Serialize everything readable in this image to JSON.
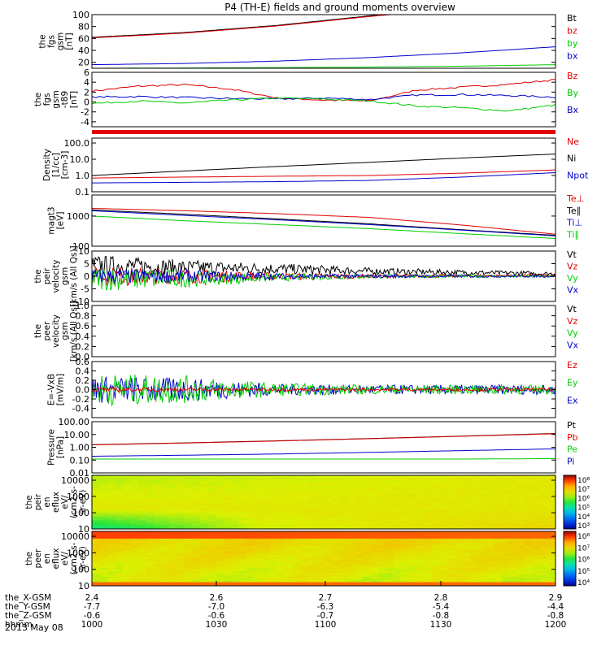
{
  "title": "P4 (TH-E) fields and ground moments overview",
  "date_label": "2013 May 08",
  "colors": {
    "black": "#000000",
    "red": "#e00000",
    "green": "#00cc00",
    "blue": "#0000cc"
  },
  "chart_data": [
    {
      "id": "fgs",
      "type": "line",
      "ylabel": [
        "the",
        "fgs",
        "gsm",
        "[nT]"
      ],
      "ylim": [
        10,
        100
      ],
      "scale": "linear",
      "yticks": [
        "100",
        "80",
        "60",
        "40",
        "20"
      ],
      "ytick_values": [
        100,
        80,
        60,
        40,
        20
      ],
      "legend": [
        {
          "text": "Bt",
          "color": "#000000"
        },
        {
          "text": "bz",
          "color": "#e00000"
        },
        {
          "text": "by",
          "color": "#00cc00"
        },
        {
          "text": "bx",
          "color": "#0000cc"
        }
      ],
      "series": [
        {
          "name": "Bt",
          "color": "#000000",
          "x": [
            2.4,
            2.5,
            2.6,
            2.7,
            2.72
          ],
          "y": [
            62,
            70,
            82,
            98,
            102
          ]
        },
        {
          "name": "bz",
          "color": "#e00000",
          "x": [
            2.4,
            2.5,
            2.6,
            2.7,
            2.73
          ],
          "y": [
            61,
            69,
            81,
            97,
            101
          ]
        },
        {
          "name": "by",
          "color": "#0000cc",
          "x": [
            2.4,
            2.5,
            2.6,
            2.7,
            2.8,
            2.9
          ],
          "y": [
            16,
            18,
            22,
            28,
            36,
            46
          ]
        },
        {
          "name": "bx",
          "color": "#00cc00",
          "x": [
            2.4,
            2.5,
            2.6,
            2.7,
            2.8,
            2.9
          ],
          "y": [
            10,
            10.5,
            11,
            12,
            13.5,
            16
          ]
        }
      ]
    },
    {
      "id": "fgs_dsl",
      "type": "line",
      "ylabel": [
        "the",
        "fgs",
        "gsm",
        "-t89",
        "[nT]"
      ],
      "ylim": [
        -5,
        6
      ],
      "scale": "linear",
      "yticks": [
        "6",
        "4",
        "2",
        "0",
        "-2",
        "-4"
      ],
      "ytick_values": [
        6,
        4,
        2,
        0,
        -2,
        -4
      ],
      "legend": [
        {
          "text": "Bz",
          "color": "#e00000"
        },
        {
          "text": "By",
          "color": "#00cc00"
        },
        {
          "text": "Bx",
          "color": "#0000cc"
        }
      ],
      "series": [
        {
          "name": "Bz",
          "color": "#e00000",
          "x": [
            2.4,
            2.45,
            2.5,
            2.55,
            2.6,
            2.65,
            2.7,
            2.75,
            2.8,
            2.85,
            2.9
          ],
          "y": [
            2.2,
            3.2,
            3.5,
            2.6,
            0.8,
            0.4,
            0.2,
            2.4,
            3.0,
            3.6,
            4.5
          ]
        },
        {
          "name": "By",
          "color": "#0000cc",
          "x": [
            2.4,
            2.45,
            2.5,
            2.55,
            2.6,
            2.65,
            2.7,
            2.75,
            2.8,
            2.85,
            2.9
          ],
          "y": [
            1.0,
            1.1,
            0.9,
            0.7,
            0.6,
            0.8,
            0.5,
            1.4,
            1.5,
            1.3,
            1.0
          ]
        },
        {
          "name": "Bx",
          "color": "#00cc00",
          "x": [
            2.4,
            2.45,
            2.5,
            2.55,
            2.6,
            2.65,
            2.7,
            2.75,
            2.8,
            2.85,
            2.9
          ],
          "y": [
            -0.3,
            0.2,
            -0.2,
            0.4,
            0.8,
            0.6,
            0.2,
            -0.8,
            -1.2,
            -1.8,
            -0.6
          ]
        }
      ]
    },
    {
      "id": "density",
      "type": "line",
      "ylabel": [
        "Density",
        "[1/cc]",
        "[cm-3]"
      ],
      "ylim": [
        0.1,
        200
      ],
      "scale": "log",
      "yticks": [
        "100.0",
        "10.0",
        "1.0",
        "0.1"
      ],
      "ytick_values": [
        100,
        10,
        1,
        0.1
      ],
      "legend": [
        {
          "text": "Ne",
          "color": "#e00000"
        },
        {
          "text": "Ni",
          "color": "#000000"
        },
        {
          "text": "Npot",
          "color": "#0000cc"
        }
      ],
      "series": [
        {
          "name": "Ni",
          "color": "#000000",
          "x": [
            2.4,
            2.5,
            2.6,
            2.7,
            2.8,
            2.9
          ],
          "y": [
            1.0,
            1.9,
            3.6,
            6.5,
            12,
            21
          ]
        },
        {
          "name": "Ne",
          "color": "#e00000",
          "x": [
            2.4,
            2.5,
            2.6,
            2.7,
            2.8,
            2.9
          ],
          "y": [
            0.7,
            0.8,
            0.9,
            1.0,
            1.4,
            2.2
          ]
        },
        {
          "name": "Npot",
          "color": "#0000cc",
          "x": [
            2.4,
            2.5,
            2.6,
            2.7,
            2.8,
            2.9
          ],
          "y": [
            0.35,
            0.38,
            0.42,
            0.5,
            0.8,
            1.5
          ]
        }
      ]
    },
    {
      "id": "temp",
      "type": "line",
      "ylabel": [
        "magt3",
        "[eV]"
      ],
      "ylim": [
        100,
        5000
      ],
      "scale": "log",
      "yticks": [
        "1000",
        "100"
      ],
      "ytick_values": [
        1000,
        100
      ],
      "legend": [
        {
          "text": "Te⊥",
          "color": "#e00000"
        },
        {
          "text": "Te∥",
          "color": "#000000"
        },
        {
          "text": "Ti⊥",
          "color": "#0000cc"
        },
        {
          "text": "Ti∥",
          "color": "#00cc00"
        }
      ],
      "series": [
        {
          "name": "Te⊥",
          "color": "#e00000",
          "x": [
            2.4,
            2.5,
            2.6,
            2.7,
            2.8,
            2.9
          ],
          "y": [
            1800,
            1500,
            1200,
            900,
            500,
            250
          ]
        },
        {
          "name": "Te∥",
          "color": "#000000",
          "x": [
            2.4,
            2.5,
            2.6,
            2.7,
            2.8,
            2.9
          ],
          "y": [
            1600,
            1150,
            800,
            550,
            350,
            230
          ]
        },
        {
          "name": "Ti⊥",
          "color": "#0000cc",
          "x": [
            2.4,
            2.5,
            2.6,
            2.7,
            2.8,
            2.9
          ],
          "y": [
            1500,
            1050,
            750,
            520,
            340,
            220
          ]
        },
        {
          "name": "Ti∥",
          "color": "#00cc00",
          "x": [
            2.4,
            2.5,
            2.6,
            2.7,
            2.8,
            2.9
          ],
          "y": [
            1000,
            700,
            520,
            380,
            260,
            180
          ]
        }
      ]
    },
    {
      "id": "peir_v",
      "type": "line",
      "ylabel": [
        "the",
        "peir",
        "velocity",
        "gsm",
        "[km/s (All Qs)]"
      ],
      "ylim": [
        -10,
        10
      ],
      "scale": "linear",
      "yticks": [
        "10",
        "5",
        "0",
        "-5",
        "-10"
      ],
      "ytick_values": [
        10,
        5,
        0,
        -5,
        -10
      ],
      "legend": [
        {
          "text": "Vt",
          "color": "#000000"
        },
        {
          "text": "Vz",
          "color": "#e00000"
        },
        {
          "text": "Vy",
          "color": "#00cc00"
        },
        {
          "text": "Vx",
          "color": "#0000cc"
        }
      ],
      "series": [
        {
          "name": "Vt",
          "color": "#000000",
          "x": [
            2.4,
            2.5,
            2.6,
            2.7,
            2.8,
            2.9
          ],
          "y": [
            4.5,
            3.5,
            3,
            2,
            1.5,
            1
          ],
          "noise": [
            4,
            3,
            2.2,
            1.4,
            1,
            0.8
          ]
        },
        {
          "name": "Vz",
          "color": "#e00000",
          "x": [
            2.4,
            2.5,
            2.6,
            2.7,
            2.8,
            2.9
          ],
          "y": [
            0,
            0,
            0,
            0,
            0.2,
            0.3
          ],
          "noise": [
            4,
            3,
            1.5,
            0.8,
            0.6,
            0.5
          ]
        },
        {
          "name": "Vy",
          "color": "#00cc00",
          "x": [
            2.4,
            2.5,
            2.6,
            2.7,
            2.8,
            2.9
          ],
          "y": [
            -1,
            -1,
            -0.5,
            0,
            0,
            0
          ],
          "noise": [
            5,
            3.5,
            1.5,
            0.8,
            0.6,
            0.5
          ]
        },
        {
          "name": "Vx",
          "color": "#0000cc",
          "x": [
            2.4,
            2.5,
            2.6,
            2.7,
            2.8,
            2.9
          ],
          "y": [
            0,
            0,
            0,
            0,
            0,
            0
          ],
          "noise": [
            3,
            2.5,
            1.2,
            0.7,
            0.5,
            0.4
          ]
        }
      ]
    },
    {
      "id": "peer_v",
      "type": "line",
      "ylabel": [
        "the",
        "peer",
        "velocity",
        "gsm",
        "[km/s (All Qs)]"
      ],
      "ylim": [
        0,
        1
      ],
      "scale": "linear",
      "yticks": [
        "1.0",
        "0.8",
        "0.6",
        "0.4",
        "0.2",
        "0.0"
      ],
      "ytick_values": [
        1,
        0.8,
        0.6,
        0.4,
        0.2,
        0
      ],
      "legend": [
        {
          "text": "Vt",
          "color": "#000000"
        },
        {
          "text": "Vz",
          "color": "#e00000"
        },
        {
          "text": "Vy",
          "color": "#00cc00"
        },
        {
          "text": "Vx",
          "color": "#0000cc"
        }
      ],
      "series": []
    },
    {
      "id": "efield",
      "type": "line",
      "ylabel": [
        "E=-VxB",
        "[mV/m]"
      ],
      "ylim": [
        -0.6,
        0.6
      ],
      "scale": "linear",
      "yticks": [
        "0.6",
        "0.4",
        "0.2",
        "0.0",
        "-0.2",
        "-0.4"
      ],
      "ytick_values": [
        0.6,
        0.4,
        0.2,
        0,
        -0.2,
        -0.4
      ],
      "legend": [
        {
          "text": "Ez",
          "color": "#e00000"
        },
        {
          "text": "Ey",
          "color": "#00cc00"
        },
        {
          "text": "Ex",
          "color": "#0000cc"
        }
      ],
      "series": [
        {
          "name": "Ex",
          "color": "#0000cc",
          "x": [
            2.4,
            2.5,
            2.6,
            2.7,
            2.8,
            2.9
          ],
          "y": [
            0,
            0,
            0,
            0,
            0,
            0
          ],
          "noise": [
            0.3,
            0.25,
            0.12,
            0.1,
            0.1,
            0.1
          ]
        },
        {
          "name": "Ey",
          "color": "#00cc00",
          "x": [
            2.4,
            2.5,
            2.6,
            2.7,
            2.8,
            2.9
          ],
          "y": [
            0,
            0,
            0,
            0,
            0,
            0
          ],
          "noise": [
            0.35,
            0.3,
            0.14,
            0.1,
            0.1,
            0.1
          ]
        },
        {
          "name": "Ez",
          "color": "#e00000",
          "x": [
            2.4,
            2.5,
            2.6,
            2.7,
            2.8,
            2.9
          ],
          "y": [
            0,
            0,
            0,
            0,
            0,
            0
          ],
          "noise": [
            0.05,
            0.04,
            0.03,
            0.03,
            0.03,
            0.03
          ]
        }
      ]
    },
    {
      "id": "pressure",
      "type": "line",
      "ylabel": [
        "Pressure",
        "[nPa]"
      ],
      "ylim": [
        0.01,
        100
      ],
      "scale": "log",
      "yticks": [
        "100.00",
        "10.00",
        "1.00",
        "0.10",
        "0.01"
      ],
      "ytick_values": [
        100,
        10,
        1,
        0.1,
        0.01
      ],
      "legend": [
        {
          "text": "Pt",
          "color": "#000000"
        },
        {
          "text": "Pb",
          "color": "#e00000"
        },
        {
          "text": "Pe",
          "color": "#00cc00"
        },
        {
          "text": "Pi",
          "color": "#0000cc"
        }
      ],
      "series": [
        {
          "name": "Pt",
          "color": "#000000",
          "x": [
            2.4,
            2.5,
            2.6,
            2.7,
            2.8,
            2.9
          ],
          "y": [
            1.6,
            2.2,
            3.2,
            4.8,
            7.5,
            12
          ]
        },
        {
          "name": "Pb",
          "color": "#e00000",
          "x": [
            2.4,
            2.5,
            2.6,
            2.7,
            2.8,
            2.9
          ],
          "y": [
            1.55,
            2.15,
            3.1,
            4.7,
            7.3,
            11.5
          ]
        },
        {
          "name": "Pi",
          "color": "#0000cc",
          "x": [
            2.4,
            2.5,
            2.6,
            2.7,
            2.8,
            2.9
          ],
          "y": [
            0.2,
            0.24,
            0.3,
            0.4,
            0.55,
            0.75
          ]
        },
        {
          "name": "Pe",
          "color": "#00cc00",
          "x": [
            2.4,
            2.5,
            2.6,
            2.7,
            2.8,
            2.9
          ],
          "y": [
            0.12,
            0.12,
            0.12,
            0.12,
            0.12,
            0.13
          ]
        }
      ]
    },
    {
      "id": "peir_spec",
      "type": "heatmap",
      "ylabel": [
        "the",
        "peir",
        "en",
        "eflux",
        "eV/",
        "(cm2-s-",
        "sr-eV)"
      ],
      "ylim": [
        10,
        20000
      ],
      "scale": "log",
      "yticks": [
        "10000",
        "1000",
        "100",
        "10"
      ],
      "ytick_values": [
        10000,
        1000,
        100,
        10
      ],
      "colorbar": {
        "labels": [
          "10⁸",
          "10⁷",
          "10⁶",
          "10⁵",
          "10⁴",
          "10³"
        ]
      }
    },
    {
      "id": "peer_spec",
      "type": "heatmap",
      "ylabel": [
        "the",
        "peer",
        "en",
        "eflux",
        "eV/",
        "(cm2-s-",
        "sr-eV)"
      ],
      "ylim": [
        10,
        20000
      ],
      "scale": "log",
      "yticks": [
        "10000",
        "1000",
        "100",
        "10"
      ],
      "ytick_values": [
        10000,
        1000,
        100,
        10
      ],
      "colorbar": {
        "labels": [
          "10⁸",
          "10⁷",
          "10⁶",
          "10⁵",
          "10⁴"
        ]
      }
    }
  ],
  "xaxis": {
    "xlim": [
      2.4,
      2.9
    ],
    "rows": [
      {
        "label": "the_X-GSM",
        "values": [
          "2.4",
          "2.6",
          "2.7",
          "2.8",
          "2.9"
        ]
      },
      {
        "label": "the_Y-GSM",
        "values": [
          "-7.7",
          "-7.0",
          "-6.3",
          "-5.4",
          "-4.4"
        ]
      },
      {
        "label": "the_Z-GSM",
        "values": [
          "-0.6",
          "-0.6",
          "-0.7",
          "-0.8",
          "-0.8"
        ]
      },
      {
        "label": "hhmm",
        "values": [
          "1000",
          "1030",
          "1100",
          "1130",
          "1200"
        ]
      }
    ]
  }
}
